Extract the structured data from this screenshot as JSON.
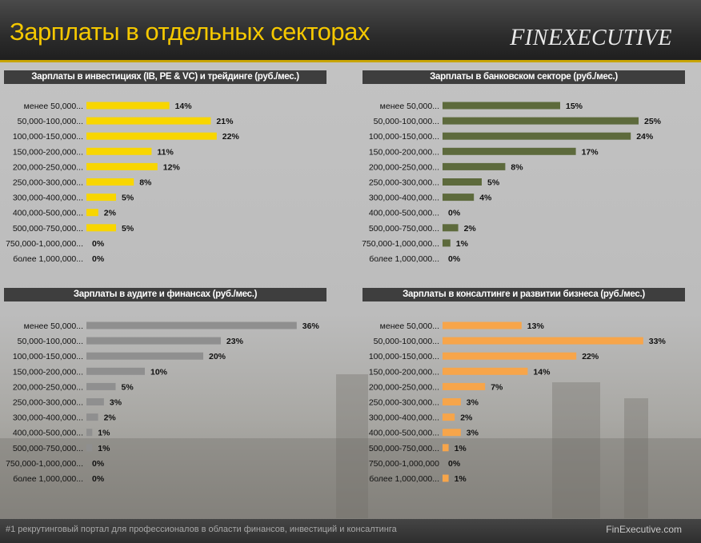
{
  "header": {
    "title": "Зарплаты в отдельных секторах",
    "brand": "FinExecutive"
  },
  "footer": {
    "text": "#1 рекрутинговый портал для профессионалов в области финансов, инвестиций и консалтинга",
    "site": "FinExecutive.com"
  },
  "colors": {
    "yellow": "#f8d600",
    "olive": "#5d6a3c",
    "grey": "#8f8f8f",
    "orange": "#f7a54a"
  },
  "chart_data": [
    {
      "type": "bar",
      "title": "Зарплаты в инвестициях (IB, PE & VC) и трейдинге (руб./мес.)",
      "categories": [
        "менее 50,000...",
        "50,000-100,000...",
        "100,000-150,000...",
        "150,000-200,000...",
        "200,000-250,000...",
        "250,000-300,000...",
        "300,000-400,000...",
        "400,000-500,000...",
        "500,000-750,000...",
        "750,000-1,000,000...",
        "более 1,000,000..."
      ],
      "values": [
        14,
        21,
        22,
        11,
        12,
        8,
        5,
        2,
        5,
        0,
        0
      ],
      "labels": [
        "14%",
        "21%",
        "22%",
        "11%",
        "12%",
        "8%",
        "5%",
        "2%",
        "5%",
        "0%",
        "0%"
      ],
      "color": "yellow",
      "xlim": [
        0,
        36
      ]
    },
    {
      "type": "bar",
      "title": "Зарплаты в банковском секторе (руб./мес.)",
      "categories": [
        "менее 50,000...",
        "50,000-100,000...",
        "100,000-150,000...",
        "150,000-200,000...",
        "200,000-250,000...",
        "250,000-300,000...",
        "300,000-400,000...",
        "400,000-500,000...",
        "500,000-750,000...",
        "750,000-1,000,000...",
        "более 1,000,000..."
      ],
      "values": [
        15,
        25,
        24,
        17,
        8,
        5,
        4,
        0,
        2,
        1,
        0
      ],
      "labels": [
        "15%",
        "25%",
        "24%",
        "17%",
        "8%",
        "5%",
        "4%",
        "0%",
        "2%",
        "1%",
        "0%"
      ],
      "color": "olive",
      "xlim": [
        0,
        36
      ]
    },
    {
      "type": "bar",
      "title": "Зарплаты в аудите и финансах (руб./мес.)",
      "categories": [
        "менее 50,000...",
        "50,000-100,000...",
        "100,000-150,000...",
        "150,000-200,000...",
        "200,000-250,000...",
        "250,000-300,000...",
        "300,000-400,000...",
        "400,000-500,000...",
        "500,000-750,000...",
        "750,000-1,000,000...",
        "более 1,000,000..."
      ],
      "values": [
        36,
        23,
        20,
        10,
        5,
        3,
        2,
        1,
        1,
        0,
        0
      ],
      "labels": [
        "36%",
        "23%",
        "20%",
        "10%",
        "5%",
        "3%",
        "2%",
        "1%",
        "1%",
        "0%",
        "0%"
      ],
      "color": "grey",
      "xlim": [
        0,
        36
      ]
    },
    {
      "type": "bar",
      "title": "Зарплаты в консалтинге и развитии бизнеса (руб./мес.)",
      "categories": [
        "менее 50,000...",
        "50,000-100,000...",
        "100,000-150,000...",
        "150,000-200,000...",
        "200,000-250,000...",
        "250,000-300,000...",
        "300,000-400,000...",
        "400,000-500,000...",
        "500,000-750,000...",
        "750,000-1,000,000",
        "более 1,000,000..."
      ],
      "values": [
        13,
        33,
        22,
        14,
        7,
        3,
        2,
        3,
        1,
        0,
        1
      ],
      "labels": [
        "13%",
        "33%",
        "22%",
        "14%",
        "7%",
        "3%",
        "2%",
        "3%",
        "1%",
        "0%",
        "1%"
      ],
      "color": "orange",
      "xlim": [
        0,
        36
      ]
    }
  ]
}
